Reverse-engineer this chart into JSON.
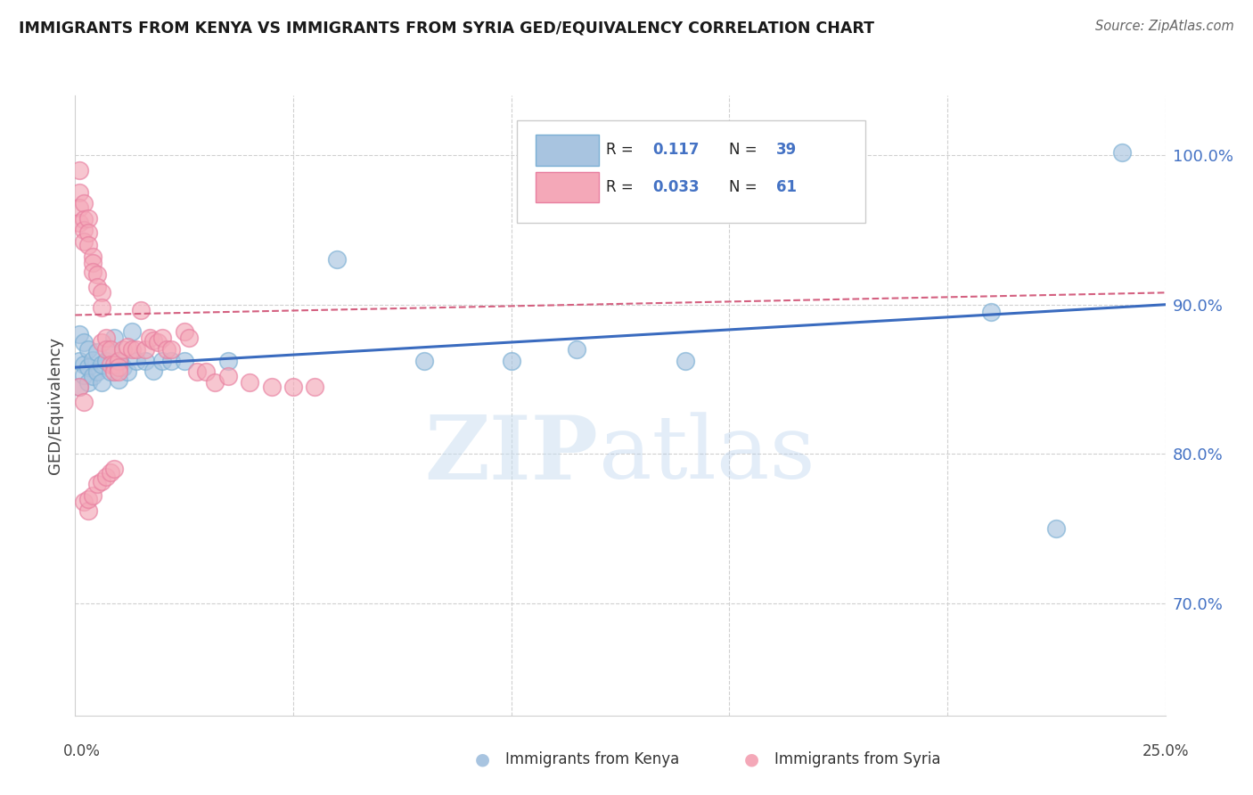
{
  "title": "IMMIGRANTS FROM KENYA VS IMMIGRANTS FROM SYRIA GED/EQUIVALENCY CORRELATION CHART",
  "source": "Source: ZipAtlas.com",
  "ylabel": "GED/Equivalency",
  "xlim": [
    0.0,
    0.25
  ],
  "ylim": [
    0.625,
    1.04
  ],
  "kenya_R": 0.117,
  "kenya_N": 39,
  "syria_R": 0.033,
  "syria_N": 61,
  "kenya_color": "#a8c4e0",
  "syria_color": "#f4a8b8",
  "kenya_edge_color": "#7aafd4",
  "syria_edge_color": "#e87fa0",
  "kenya_line_color": "#3a6bbf",
  "syria_line_color": "#d46080",
  "grid_color": "#d0d0d0",
  "watermark_zip": "ZIP",
  "watermark_atlas": "atlas",
  "legend_label_kenya": "Immigrants from Kenya",
  "legend_label_syria": "Immigrants from Syria",
  "ytick_color": "#4472c4",
  "kenya_x": [
    0.001,
    0.001,
    0.001,
    0.002,
    0.002,
    0.002,
    0.003,
    0.003,
    0.003,
    0.004,
    0.004,
    0.005,
    0.005,
    0.006,
    0.006,
    0.007,
    0.008,
    0.008,
    0.009,
    0.01,
    0.01,
    0.011,
    0.012,
    0.013,
    0.014,
    0.016,
    0.018,
    0.02,
    0.022,
    0.025,
    0.035,
    0.06,
    0.08,
    0.1,
    0.115,
    0.14,
    0.21,
    0.225,
    0.24
  ],
  "kenya_y": [
    0.88,
    0.862,
    0.845,
    0.875,
    0.86,
    0.853,
    0.87,
    0.858,
    0.848,
    0.863,
    0.852,
    0.868,
    0.855,
    0.86,
    0.848,
    0.862,
    0.868,
    0.855,
    0.878,
    0.862,
    0.85,
    0.858,
    0.855,
    0.882,
    0.862,
    0.862,
    0.856,
    0.862,
    0.862,
    0.862,
    0.862,
    0.93,
    0.862,
    0.862,
    0.87,
    0.862,
    0.895,
    0.75,
    1.002
  ],
  "syria_x": [
    0.001,
    0.001,
    0.001,
    0.001,
    0.002,
    0.002,
    0.002,
    0.002,
    0.003,
    0.003,
    0.003,
    0.004,
    0.004,
    0.004,
    0.005,
    0.005,
    0.006,
    0.006,
    0.006,
    0.007,
    0.007,
    0.008,
    0.008,
    0.009,
    0.009,
    0.01,
    0.01,
    0.01,
    0.011,
    0.012,
    0.013,
    0.014,
    0.015,
    0.016,
    0.017,
    0.018,
    0.019,
    0.02,
    0.021,
    0.022,
    0.025,
    0.026,
    0.028,
    0.03,
    0.032,
    0.035,
    0.04,
    0.045,
    0.05,
    0.055,
    0.001,
    0.002,
    0.002,
    0.003,
    0.003,
    0.004,
    0.005,
    0.006,
    0.007,
    0.008,
    0.009
  ],
  "syria_y": [
    0.99,
    0.975,
    0.965,
    0.955,
    0.968,
    0.957,
    0.95,
    0.942,
    0.958,
    0.948,
    0.94,
    0.932,
    0.928,
    0.922,
    0.92,
    0.912,
    0.908,
    0.898,
    0.875,
    0.878,
    0.87,
    0.87,
    0.86,
    0.86,
    0.855,
    0.862,
    0.858,
    0.855,
    0.87,
    0.872,
    0.87,
    0.87,
    0.896,
    0.87,
    0.878,
    0.876,
    0.875,
    0.878,
    0.87,
    0.87,
    0.882,
    0.878,
    0.855,
    0.855,
    0.848,
    0.852,
    0.848,
    0.845,
    0.845,
    0.845,
    0.845,
    0.835,
    0.768,
    0.762,
    0.77,
    0.772,
    0.78,
    0.782,
    0.785,
    0.788,
    0.79
  ],
  "kenya_line_x0": 0.0,
  "kenya_line_y0": 0.858,
  "kenya_line_x1": 0.25,
  "kenya_line_y1": 0.9,
  "syria_line_x0": 0.0,
  "syria_line_y0": 0.893,
  "syria_line_x1": 0.25,
  "syria_line_y1": 0.908
}
